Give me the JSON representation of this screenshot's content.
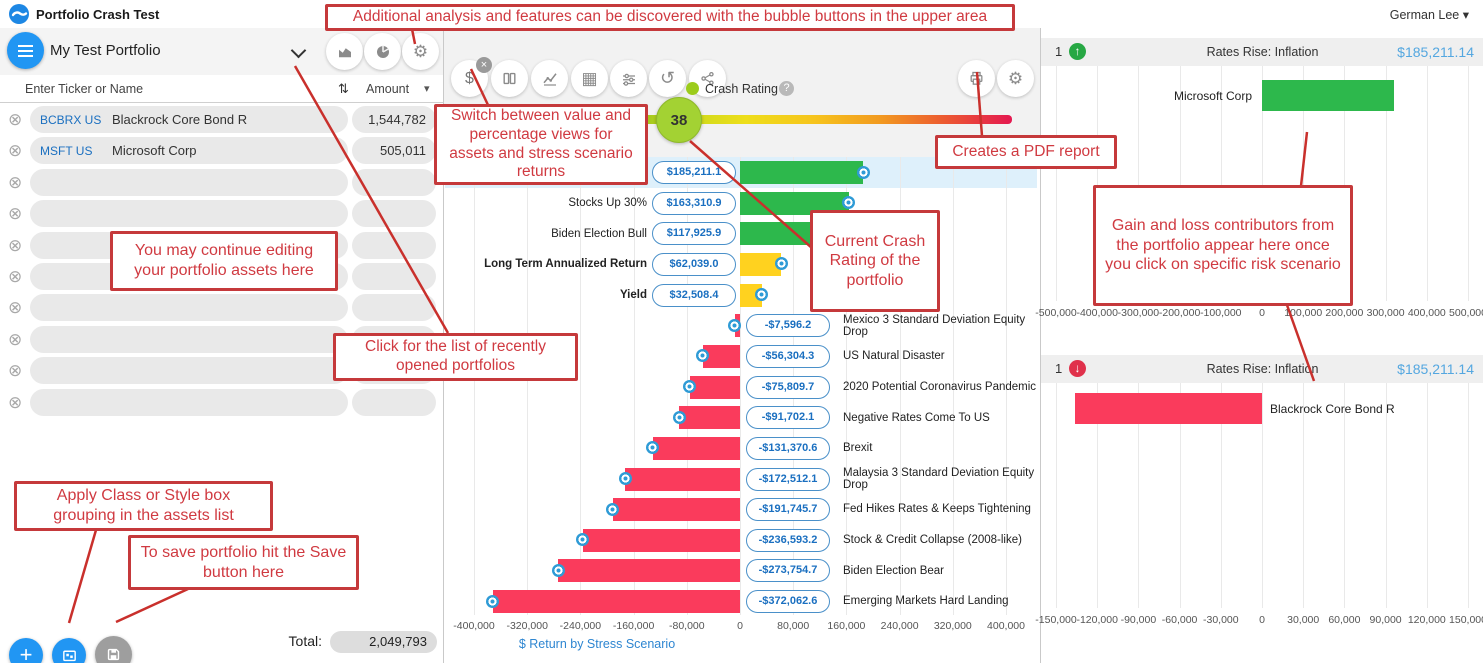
{
  "app": {
    "title": "Portfolio Crash Test",
    "user": "German Lee"
  },
  "left_panel": {
    "portfolio_name": "My Test Portfolio",
    "table": {
      "name_header": "Enter Ticker or Name",
      "amount_header": "Amount",
      "rows": [
        {
          "ticker": "BCBRX US",
          "name": "Blackrock Core Bond R",
          "amount": "1,544,782"
        },
        {
          "ticker": "MSFT US",
          "name": "Microsoft Corp",
          "amount": "505,011"
        }
      ],
      "empty_row_count": 8,
      "total_label": "Total:",
      "total_value": "2,049,793"
    }
  },
  "middle_panel": {
    "crash_rating": {
      "legend_label": "Crash Rating",
      "value": 38
    },
    "chart_data": {
      "type": "bar",
      "orientation": "horizontal",
      "title": "",
      "xlabel": "$ Return by Stress Scenario",
      "xlim": [
        -400000,
        400000
      ],
      "tick_step": 80000,
      "grid": true,
      "selected_index": 0,
      "categories": [
        "Rates Rise: Inflation",
        "Stocks Up 30%",
        "Biden Election Bull",
        "Long Term Annualized Return",
        "Yield",
        "Mexico 3 Standard Deviation Equity Drop",
        "US Natural Disaster",
        "2020 Potential Coronavirus Pandemic",
        "Negative Rates Come To US",
        "Brexit",
        "Malaysia 3 Standard Deviation Equity Drop",
        "Fed Hikes Rates & Keeps Tightening",
        "Stock & Credit Collapse (2008-like)",
        "Biden Election Bear",
        "Emerging Markets Hard Landing"
      ],
      "values": [
        185211.1,
        163310.9,
        117925.9,
        62039.0,
        32508.4,
        -7596.2,
        -56304.3,
        -75809.7,
        -91702.1,
        -131370.6,
        -172512.1,
        -191745.7,
        -236593.2,
        -273754.7,
        -372062.6
      ],
      "value_labels": [
        "$185,211.1",
        "$163,310.9",
        "$117,925.9",
        "$62,039.0",
        "$32,508.4",
        "-$7,596.2",
        "-$56,304.3",
        "-$75,809.7",
        "-$91,702.1",
        "-$131,370.6",
        "-$172,512.1",
        "-$191,745.7",
        "-$236,593.2",
        "-$273,754.7",
        "-$372,062.6"
      ],
      "bar_colors": [
        "green",
        "green",
        "green",
        "yellow",
        "yellow",
        "red",
        "red",
        "red",
        "red",
        "red",
        "red",
        "red",
        "red",
        "red",
        "red"
      ],
      "bold_label_indices": [
        3,
        4
      ]
    }
  },
  "right_panel": {
    "gain": {
      "count": "1",
      "scenario": "Rates Rise: Inflation",
      "value": "$185,211.14",
      "chart_data": {
        "type": "bar",
        "orientation": "horizontal",
        "categories": [
          "Microsoft Corp"
        ],
        "values": [
          320000
        ],
        "xlim": [
          -500000,
          500000
        ],
        "tick_step": 100000,
        "grid": true,
        "bar_color": "green"
      }
    },
    "loss": {
      "count": "1",
      "scenario": "Rates Rise: Inflation",
      "value": "$185,211.14",
      "chart_data": {
        "type": "bar",
        "orientation": "horizontal",
        "categories": [
          "Blackrock Core Bond R"
        ],
        "values": [
          -136000
        ],
        "xlim": [
          -150000,
          150000
        ],
        "tick_step": 30000,
        "grid": true,
        "bar_color": "red"
      }
    }
  },
  "annotations": {
    "top": "Additional analysis and features can be discovered with the bubble buttons in the upper area",
    "switch_views": "Switch between value and percentage views for assets and stress scenario returns",
    "edit_assets": "You may continue editing your portfolio assets here",
    "recent_portfolios": "Click for the list of recently opened portfolios",
    "crash_rating": "Current Crash Rating of the portfolio",
    "pdf_report": "Creates a PDF report",
    "contributors": "Gain and loss contributors from the portfolio appear here once you click on specific risk scenario",
    "grouping": "Apply Class or Style box grouping in the assets list",
    "save": "To save portfolio hit the Save button here"
  },
  "colors": {
    "green_bar": "#2db84c",
    "yellow_bar": "#ffd21f",
    "red_bar": "#fa3b5c",
    "accent_blue": "#2196f3",
    "pill_blue": "#1a6fc0",
    "value_blue": "#54a7e0",
    "annotation_red": "#c5393b",
    "gauge_bubble": "#a3d233",
    "gain_icon": "#27a844",
    "loss_icon": "#e0314b"
  },
  "icons": {
    "dollar": "$",
    "grid": "▦",
    "history": "↺",
    "gear": "⚙",
    "remove": "⊗",
    "sort": "⇅",
    "caret_down": "▾",
    "up_arrow": "↑",
    "down_arrow": "↓",
    "close_badge": "×",
    "plus": "+",
    "help": "?"
  }
}
